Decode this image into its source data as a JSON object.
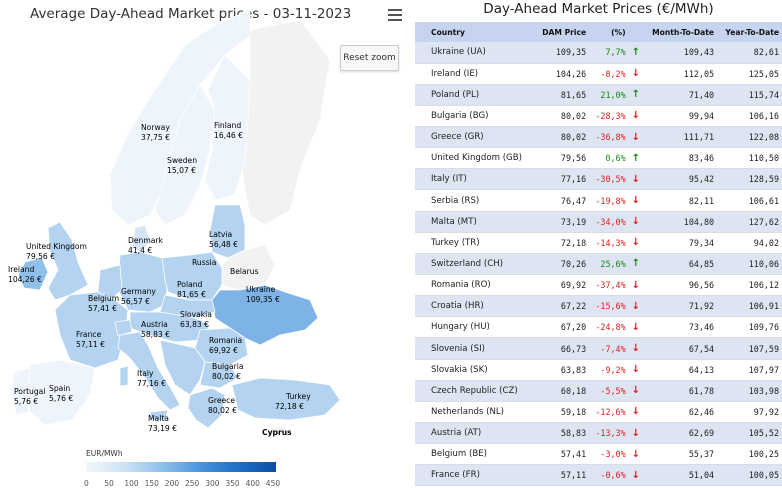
{
  "map": {
    "title": "Average Day-Ahead Market prices - 03-11-2023",
    "reset_zoom_label": "Reset zoom",
    "legend_title": "EUR/MWh",
    "legend_ticks": [
      "0",
      "50",
      "100",
      "150",
      "200",
      "250",
      "300",
      "350",
      "400",
      "450"
    ],
    "labels": [
      {
        "name": "Norway",
        "value": "37,75 €"
      },
      {
        "name": "Finland",
        "value": "16,46 €"
      },
      {
        "name": "Sweden",
        "value": "15,07 €"
      },
      {
        "name": "Latvia",
        "value": "56,48 €"
      },
      {
        "name": "Denmark",
        "value": "41,4 €"
      },
      {
        "name": "United Kingdom",
        "value": "79,56 €"
      },
      {
        "name": "Ireland",
        "value": "104,26 €"
      },
      {
        "name": "Russia",
        "value": ""
      },
      {
        "name": "Belarus",
        "value": ""
      },
      {
        "name": "Germany",
        "value": "56,57 €"
      },
      {
        "name": "Poland",
        "value": "81,65 €"
      },
      {
        "name": "Belgium",
        "value": "57,41 €"
      },
      {
        "name": "Ukraine",
        "value": "109,35 €"
      },
      {
        "name": "Slovakia",
        "value": "63,83 €"
      },
      {
        "name": "Austria",
        "value": "58,83 €"
      },
      {
        "name": "France",
        "value": "57,11 €"
      },
      {
        "name": "Romania",
        "value": "69,92 €"
      },
      {
        "name": "Bulgaria",
        "value": "80,02 €"
      },
      {
        "name": "Italy",
        "value": "77,16 €"
      },
      {
        "name": "Portugal",
        "value": "5,76 €"
      },
      {
        "name": "Spain",
        "value": "5,76 €"
      },
      {
        "name": "Greece",
        "value": "80,02 €"
      },
      {
        "name": "Turkey",
        "value": "72,18 €"
      },
      {
        "name": "Malta",
        "value": "73,19 €"
      },
      {
        "name": "Cyprus",
        "value": ""
      }
    ],
    "colors": {
      "very_low": "#eef4fb",
      "low": "#d4e6f6",
      "mid": "#b3d3f0",
      "high": "#8ec0ea",
      "ukraine": "#7db3e6",
      "no_data": "#f2f2f2"
    }
  },
  "table": {
    "title": "Day-Ahead Market Prices (€/MWh)",
    "headers": {
      "country": "Country",
      "dam": "DAM Price",
      "pct": "(%)",
      "mtd": "Month-To-Date",
      "ytd": "Year-To-Date"
    },
    "rows": [
      {
        "country": "Ukraine (UA)",
        "dam": "109,35",
        "pct": "7,7%",
        "dir": "up",
        "mtd": "109,43",
        "ytd": "82,61"
      },
      {
        "country": "Ireland (IE)",
        "dam": "104,26",
        "pct": "-8,2%",
        "dir": "down",
        "mtd": "112,05",
        "ytd": "125,05"
      },
      {
        "country": "Poland (PL)",
        "dam": "81,65",
        "pct": "21,0%",
        "dir": "up",
        "mtd": "71,40",
        "ytd": "115,74"
      },
      {
        "country": "Bulgaria (BG)",
        "dam": "80,02",
        "pct": "-28,3%",
        "dir": "down",
        "mtd": "99,94",
        "ytd": "106,16"
      },
      {
        "country": "Greece (GR)",
        "dam": "80,02",
        "pct": "-36,8%",
        "dir": "down",
        "mtd": "111,71",
        "ytd": "122,08"
      },
      {
        "country": "United Kingdom (GB)",
        "dam": "79,56",
        "pct": "0,6%",
        "dir": "up",
        "mtd": "83,46",
        "ytd": "110,50"
      },
      {
        "country": "Italy (IT)",
        "dam": "77,16",
        "pct": "-30,5%",
        "dir": "down",
        "mtd": "95,42",
        "ytd": "128,59"
      },
      {
        "country": "Serbia (RS)",
        "dam": "76,47",
        "pct": "-19,8%",
        "dir": "down",
        "mtd": "82,11",
        "ytd": "106,61"
      },
      {
        "country": "Malta (MT)",
        "dam": "73,19",
        "pct": "-34,0%",
        "dir": "down",
        "mtd": "104,80",
        "ytd": "127,62"
      },
      {
        "country": "Turkey (TR)",
        "dam": "72,18",
        "pct": "-14,3%",
        "dir": "down",
        "mtd": "79,34",
        "ytd": "94,02"
      },
      {
        "country": "Switzerland (CH)",
        "dam": "70,26",
        "pct": "25,6%",
        "dir": "up",
        "mtd": "64,85",
        "ytd": "110,06"
      },
      {
        "country": "Romania (RO)",
        "dam": "69,92",
        "pct": "-37,4%",
        "dir": "down",
        "mtd": "96,56",
        "ytd": "106,12"
      },
      {
        "country": "Croatia (HR)",
        "dam": "67,22",
        "pct": "-15,6%",
        "dir": "down",
        "mtd": "71,92",
        "ytd": "106,91"
      },
      {
        "country": "Hungary (HU)",
        "dam": "67,20",
        "pct": "-24,8%",
        "dir": "down",
        "mtd": "73,46",
        "ytd": "109,76"
      },
      {
        "country": "Slovenia (SI)",
        "dam": "66,73",
        "pct": "-7,4%",
        "dir": "down",
        "mtd": "67,54",
        "ytd": "107,59"
      },
      {
        "country": "Slovakia (SK)",
        "dam": "63,83",
        "pct": "-9,2%",
        "dir": "down",
        "mtd": "64,13",
        "ytd": "107,97"
      },
      {
        "country": "Czech Republic (CZ)",
        "dam": "60,18",
        "pct": "-5,5%",
        "dir": "down",
        "mtd": "61,78",
        "ytd": "103,98"
      },
      {
        "country": "Netherlands (NL)",
        "dam": "59,18",
        "pct": "-12,6%",
        "dir": "down",
        "mtd": "62,46",
        "ytd": "97,92"
      },
      {
        "country": "Austria (AT)",
        "dam": "58,83",
        "pct": "-13,3%",
        "dir": "down",
        "mtd": "62,69",
        "ytd": "105,52"
      },
      {
        "country": "Belgium (BE)",
        "dam": "57,41",
        "pct": "-3,0%",
        "dir": "down",
        "mtd": "55,37",
        "ytd": "100,25"
      },
      {
        "country": "France (FR)",
        "dam": "57,11",
        "pct": "-0,6%",
        "dir": "down",
        "mtd": "51,04",
        "ytd": "100,05"
      }
    ]
  }
}
